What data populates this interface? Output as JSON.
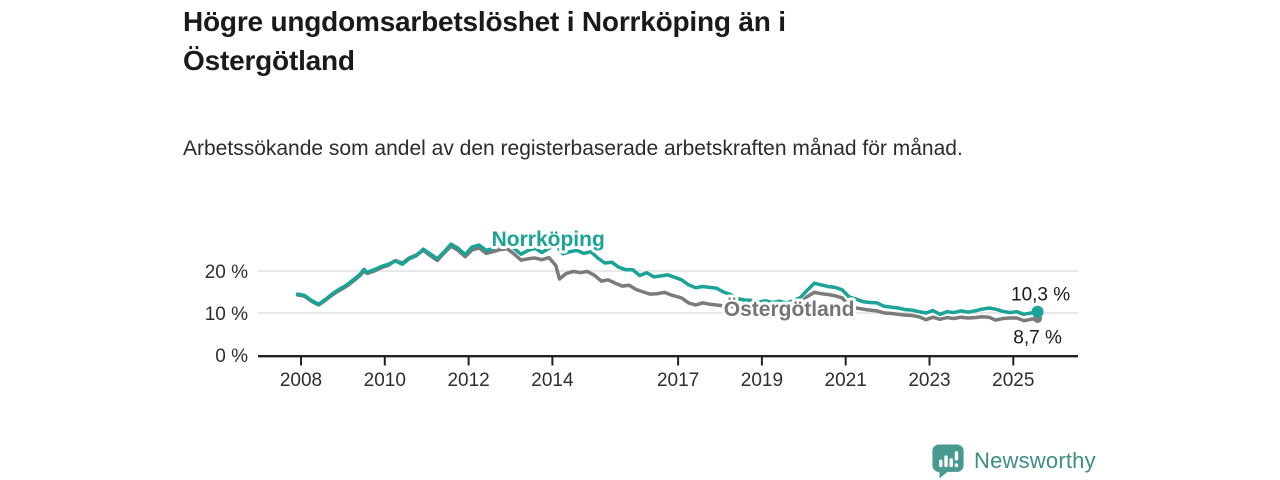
{
  "header": {
    "title": "Högre ungdomsarbetslöshet i Norrköping än i Östergötland",
    "subtitle": "Arbetssökande som andel av den registerbaserade arbetskraften månad för månad."
  },
  "footer": {
    "brand": "Newsworthy"
  },
  "colors": {
    "accent_teal": "#1aa396",
    "series_gray": "#7b7b7b",
    "label_gray": "#757575",
    "grid": "#d9d9d9",
    "axis": "#222222",
    "tick_text": "#2e2e2e",
    "text_dark": "#1a1a1a",
    "brand_teal": "#3d8d85",
    "brand_icon_teal": "#48998f"
  },
  "chart_data": {
    "type": "line",
    "title": "Högre ungdomsarbetslöshet i Norrköping än i Östergötland",
    "subtitle": "Arbetssökande som andel av den registerbaserade arbetskraften månad för månad.",
    "unit": "%",
    "grid": true,
    "x_axis": {
      "range": [
        2007.9,
        2026.3
      ],
      "ticks": [
        {
          "year": 2008,
          "label": "2008"
        },
        {
          "year": 2010,
          "label": "2010"
        },
        {
          "year": 2012,
          "label": "2012"
        },
        {
          "year": 2014,
          "label": "2014"
        },
        {
          "year": 2017,
          "label": "2017"
        },
        {
          "year": 2019,
          "label": "2019"
        },
        {
          "year": 2021,
          "label": "2021"
        },
        {
          "year": 2023,
          "label": "2023"
        },
        {
          "year": 2025,
          "label": "2025"
        }
      ]
    },
    "y_axis": {
      "range": [
        0,
        28
      ],
      "ticks": [
        {
          "value": 0,
          "label": "0 %"
        },
        {
          "value": 10,
          "label": "10 %"
        },
        {
          "value": 20,
          "label": "20 %"
        }
      ],
      "gridlines": [
        10,
        20
      ]
    },
    "series": [
      {
        "id": "norrkoping",
        "name": "Norrköping",
        "color": "#1aa396",
        "label_color": "#1aa396",
        "end_label": "10,3 %",
        "end_value": 10.3,
        "label_anchor": {
          "year": 2013.9,
          "value": 25.9
        },
        "points": [
          [
            2007.92,
            14.5
          ],
          [
            2008.08,
            14.2
          ],
          [
            2008.25,
            13.0
          ],
          [
            2008.42,
            12.1
          ],
          [
            2008.58,
            13.2
          ],
          [
            2008.75,
            14.6
          ],
          [
            2008.92,
            15.7
          ],
          [
            2009.08,
            16.6
          ],
          [
            2009.25,
            17.9
          ],
          [
            2009.42,
            19.3
          ],
          [
            2009.5,
            20.4
          ],
          [
            2009.58,
            19.7
          ],
          [
            2009.75,
            20.3
          ],
          [
            2009.92,
            21.1
          ],
          [
            2010.08,
            21.6
          ],
          [
            2010.25,
            22.4
          ],
          [
            2010.42,
            21.6
          ],
          [
            2010.58,
            22.9
          ],
          [
            2010.75,
            23.6
          ],
          [
            2010.92,
            25.2
          ],
          [
            2011.08,
            24.1
          ],
          [
            2011.25,
            22.9
          ],
          [
            2011.42,
            24.6
          ],
          [
            2011.58,
            26.4
          ],
          [
            2011.75,
            25.4
          ],
          [
            2011.92,
            23.9
          ],
          [
            2012.08,
            25.7
          ],
          [
            2012.25,
            26.2
          ],
          [
            2012.42,
            24.9
          ],
          [
            2012.58,
            25.4
          ],
          [
            2012.75,
            26.1
          ],
          [
            2012.92,
            26.5
          ],
          [
            2013.08,
            25.4
          ],
          [
            2013.25,
            24.0
          ],
          [
            2013.42,
            24.9
          ],
          [
            2013.58,
            25.4
          ],
          [
            2013.75,
            24.4
          ],
          [
            2013.92,
            25.4
          ],
          [
            2014.08,
            26.2
          ],
          [
            2014.25,
            24.1
          ],
          [
            2014.42,
            24.6
          ],
          [
            2014.58,
            24.9
          ],
          [
            2014.75,
            24.2
          ],
          [
            2014.92,
            24.6
          ],
          [
            2015.08,
            23.1
          ],
          [
            2015.25,
            21.9
          ],
          [
            2015.42,
            22.1
          ],
          [
            2015.58,
            20.9
          ],
          [
            2015.75,
            20.3
          ],
          [
            2015.92,
            20.3
          ],
          [
            2016.08,
            18.9
          ],
          [
            2016.25,
            19.6
          ],
          [
            2016.42,
            18.6
          ],
          [
            2016.58,
            18.8
          ],
          [
            2016.75,
            19.1
          ],
          [
            2016.92,
            18.5
          ],
          [
            2017.08,
            17.9
          ],
          [
            2017.25,
            16.7
          ],
          [
            2017.42,
            16.0
          ],
          [
            2017.58,
            16.3
          ],
          [
            2017.75,
            16.1
          ],
          [
            2017.92,
            15.9
          ],
          [
            2018.08,
            15.0
          ],
          [
            2018.25,
            14.4
          ],
          [
            2018.42,
            13.4
          ],
          [
            2018.58,
            13.1
          ],
          [
            2018.75,
            13.0
          ],
          [
            2018.92,
            12.6
          ],
          [
            2019.08,
            12.9
          ],
          [
            2019.25,
            12.5
          ],
          [
            2019.42,
            12.8
          ],
          [
            2019.58,
            12.4
          ],
          [
            2019.75,
            12.9
          ],
          [
            2019.92,
            13.7
          ],
          [
            2020.08,
            15.4
          ],
          [
            2020.25,
            17.1
          ],
          [
            2020.42,
            16.7
          ],
          [
            2020.58,
            16.3
          ],
          [
            2020.75,
            16.1
          ],
          [
            2020.92,
            15.5
          ],
          [
            2021.08,
            13.8
          ],
          [
            2021.25,
            13.3
          ],
          [
            2021.42,
            12.7
          ],
          [
            2021.58,
            12.5
          ],
          [
            2021.75,
            12.4
          ],
          [
            2021.92,
            11.6
          ],
          [
            2022.08,
            11.4
          ],
          [
            2022.25,
            11.2
          ],
          [
            2022.42,
            10.8
          ],
          [
            2022.58,
            10.7
          ],
          [
            2022.75,
            10.3
          ],
          [
            2022.92,
            10.0
          ],
          [
            2023.08,
            10.6
          ],
          [
            2023.25,
            9.7
          ],
          [
            2023.42,
            10.3
          ],
          [
            2023.58,
            10.1
          ],
          [
            2023.75,
            10.5
          ],
          [
            2023.92,
            10.2
          ],
          [
            2024.08,
            10.5
          ],
          [
            2024.25,
            10.9
          ],
          [
            2024.42,
            11.2
          ],
          [
            2024.58,
            10.9
          ],
          [
            2024.75,
            10.4
          ],
          [
            2024.92,
            10.1
          ],
          [
            2025.08,
            10.3
          ],
          [
            2025.25,
            9.7
          ],
          [
            2025.42,
            10.0
          ],
          [
            2025.58,
            10.3
          ]
        ]
      },
      {
        "id": "ostergotland",
        "name": "Östergötland",
        "color": "#7b7b7b",
        "label_color": "#757575",
        "end_label": "8,7 %",
        "end_value": 8.7,
        "label_anchor": {
          "year": 2019.65,
          "value": 9.3
        },
        "points": [
          [
            2007.92,
            14.3
          ],
          [
            2008.08,
            14.0
          ],
          [
            2008.25,
            12.8
          ],
          [
            2008.42,
            11.9
          ],
          [
            2008.58,
            13.0
          ],
          [
            2008.75,
            14.3
          ],
          [
            2008.92,
            15.4
          ],
          [
            2009.08,
            16.3
          ],
          [
            2009.25,
            17.6
          ],
          [
            2009.42,
            19.0
          ],
          [
            2009.5,
            20.0
          ],
          [
            2009.58,
            19.4
          ],
          [
            2009.75,
            20.0
          ],
          [
            2009.92,
            20.8
          ],
          [
            2010.08,
            21.3
          ],
          [
            2010.25,
            22.5
          ],
          [
            2010.42,
            21.9
          ],
          [
            2010.58,
            23.1
          ],
          [
            2010.75,
            23.8
          ],
          [
            2010.92,
            24.9
          ],
          [
            2011.08,
            23.7
          ],
          [
            2011.25,
            22.5
          ],
          [
            2011.42,
            24.3
          ],
          [
            2011.58,
            25.9
          ],
          [
            2011.75,
            24.9
          ],
          [
            2011.92,
            23.4
          ],
          [
            2012.08,
            25.0
          ],
          [
            2012.25,
            25.5
          ],
          [
            2012.42,
            24.2
          ],
          [
            2012.58,
            24.6
          ],
          [
            2012.75,
            25.1
          ],
          [
            2012.92,
            25.3
          ],
          [
            2013.08,
            24.1
          ],
          [
            2013.25,
            22.6
          ],
          [
            2013.42,
            22.9
          ],
          [
            2013.58,
            23.1
          ],
          [
            2013.75,
            22.7
          ],
          [
            2013.92,
            23.2
          ],
          [
            2014.08,
            21.3
          ],
          [
            2014.17,
            18.1
          ],
          [
            2014.33,
            19.4
          ],
          [
            2014.5,
            19.9
          ],
          [
            2014.67,
            19.6
          ],
          [
            2014.83,
            19.9
          ],
          [
            2015.0,
            19.0
          ],
          [
            2015.17,
            17.6
          ],
          [
            2015.33,
            17.9
          ],
          [
            2015.5,
            17.1
          ],
          [
            2015.67,
            16.4
          ],
          [
            2015.83,
            16.6
          ],
          [
            2016.0,
            15.6
          ],
          [
            2016.17,
            15.0
          ],
          [
            2016.33,
            14.5
          ],
          [
            2016.5,
            14.6
          ],
          [
            2016.67,
            14.9
          ],
          [
            2016.83,
            14.3
          ],
          [
            2017.08,
            13.6
          ],
          [
            2017.25,
            12.4
          ],
          [
            2017.42,
            11.9
          ],
          [
            2017.58,
            12.4
          ],
          [
            2017.75,
            12.1
          ],
          [
            2017.92,
            11.9
          ],
          [
            2018.08,
            11.7
          ],
          [
            2018.25,
            11.6
          ],
          [
            2018.42,
            11.3
          ],
          [
            2018.58,
            11.4
          ],
          [
            2018.75,
            11.5
          ],
          [
            2018.92,
            11.3
          ],
          [
            2019.08,
            11.5
          ],
          [
            2019.25,
            11.4
          ],
          [
            2019.42,
            11.6
          ],
          [
            2019.58,
            11.5
          ],
          [
            2019.75,
            11.9
          ],
          [
            2019.92,
            12.4
          ],
          [
            2020.08,
            13.9
          ],
          [
            2020.25,
            14.9
          ],
          [
            2020.42,
            14.6
          ],
          [
            2020.58,
            14.4
          ],
          [
            2020.75,
            14.1
          ],
          [
            2020.92,
            13.6
          ],
          [
            2021.08,
            11.6
          ],
          [
            2021.25,
            11.2
          ],
          [
            2021.42,
            10.9
          ],
          [
            2021.58,
            10.7
          ],
          [
            2021.75,
            10.5
          ],
          [
            2021.92,
            10.0
          ],
          [
            2022.08,
            9.9
          ],
          [
            2022.25,
            9.7
          ],
          [
            2022.42,
            9.5
          ],
          [
            2022.58,
            9.4
          ],
          [
            2022.75,
            9.1
          ],
          [
            2022.92,
            8.4
          ],
          [
            2023.08,
            9.0
          ],
          [
            2023.25,
            8.5
          ],
          [
            2023.42,
            8.9
          ],
          [
            2023.58,
            8.7
          ],
          [
            2023.75,
            9.0
          ],
          [
            2023.92,
            8.8
          ],
          [
            2024.08,
            8.9
          ],
          [
            2024.25,
            9.1
          ],
          [
            2024.42,
            9.0
          ],
          [
            2024.58,
            8.3
          ],
          [
            2024.75,
            8.7
          ],
          [
            2024.92,
            8.8
          ],
          [
            2025.08,
            8.8
          ],
          [
            2025.25,
            8.2
          ],
          [
            2025.42,
            8.5
          ],
          [
            2025.58,
            8.7
          ]
        ]
      }
    ],
    "legend_position": "inline-labels"
  }
}
